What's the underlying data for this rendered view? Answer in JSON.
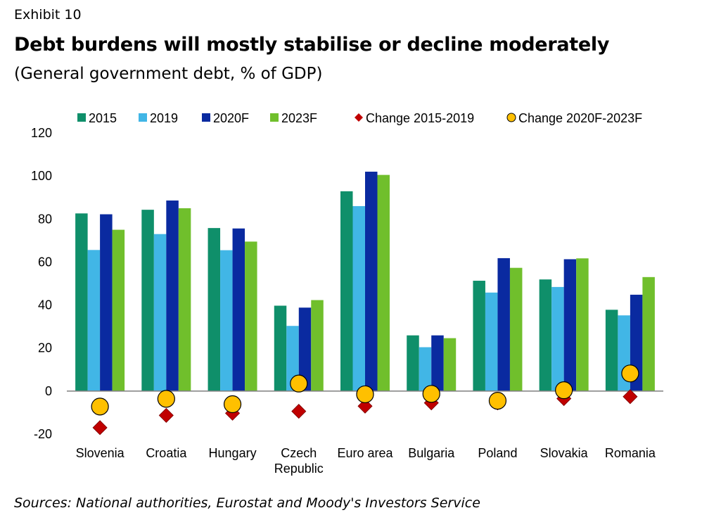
{
  "header": {
    "exhibit": "Exhibit 10",
    "title": "Debt burdens will mostly stabilise or decline moderately",
    "subtitle": "(General government debt, % of GDP)"
  },
  "footer": {
    "source": "Sources: National authorities, Eurostat and Moody's Investors Service"
  },
  "chart_data": {
    "type": "bar",
    "categories": [
      "Slovenia",
      "Croatia",
      "Hungary",
      "Czech\nRepublic",
      "Euro area",
      "Bulgaria",
      "Poland",
      "Slovakia",
      "Romania"
    ],
    "series": [
      {
        "name": "2015",
        "kind": "bar",
        "color": "#0f8f6a",
        "values": [
          82.6,
          84.3,
          75.8,
          39.7,
          92.9,
          25.9,
          51.3,
          51.9,
          37.8
        ]
      },
      {
        "name": "2019",
        "kind": "bar",
        "color": "#41b6e6",
        "values": [
          65.6,
          73.0,
          65.5,
          30.3,
          86.0,
          20.4,
          45.8,
          48.4,
          35.2
        ]
      },
      {
        "name": "2020F",
        "kind": "bar",
        "color": "#0a2aa0",
        "values": [
          82.2,
          88.6,
          75.6,
          38.8,
          102.0,
          25.9,
          61.8,
          61.3,
          44.8
        ]
      },
      {
        "name": "2023F",
        "kind": "bar",
        "color": "#70bf2c",
        "values": [
          75.0,
          85.0,
          69.5,
          42.3,
          100.5,
          24.6,
          57.3,
          61.7,
          53.0
        ]
      },
      {
        "name": "Change 2015-2019",
        "kind": "marker",
        "marker": "diamond",
        "color": "#c00000",
        "values": [
          -17.0,
          -11.3,
          -10.3,
          -9.4,
          -7.0,
          -5.5,
          -5.5,
          -3.5,
          -2.6
        ]
      },
      {
        "name": "Change 2020F-2023F",
        "kind": "marker",
        "marker": "circle",
        "color": "#ffc000",
        "values": [
          -7.2,
          -3.6,
          -6.1,
          3.5,
          -1.5,
          -1.3,
          -4.5,
          0.4,
          8.2
        ]
      }
    ],
    "ylim": [
      -20,
      120
    ],
    "yticks": [
      -20,
      0,
      20,
      40,
      60,
      80,
      100,
      120
    ],
    "grid": false,
    "legend": "top"
  }
}
